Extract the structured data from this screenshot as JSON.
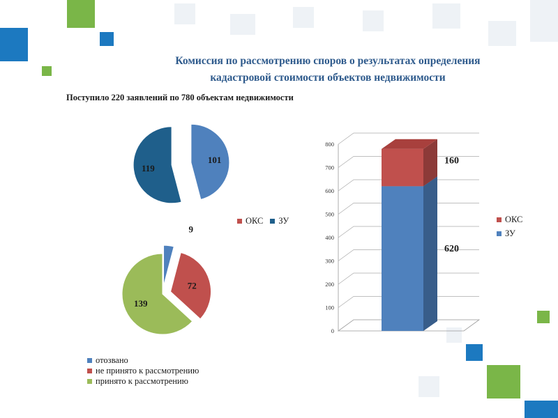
{
  "title_line1": "Комиссия по рассмотрению споров о результатах определения",
  "title_line2": "кадастровой стоимости объектов недвижимости",
  "subtitle": "Поступило 220 заявлений по 780 объектам недвижимости",
  "colors": {
    "blue": "#4f81bd",
    "dark_blue": "#1f5f8b",
    "red": "#c0504d",
    "green": "#9bbb59",
    "deco_blue": "#1c79c0",
    "deco_green": "#7ab648",
    "deco_light": "#e6ebf2"
  },
  "chart_data": [
    {
      "type": "pie",
      "categories": [
        "ОКС",
        "ЗУ"
      ],
      "values": [
        101,
        119
      ],
      "labels": [
        "101",
        "119"
      ],
      "legend": [
        "ОКС",
        "ЗУ"
      ],
      "legend_position": "bottom"
    },
    {
      "type": "pie",
      "categories": [
        "отозвано",
        "не принято к рассмотрению",
        "принято к рассмотрению"
      ],
      "values": [
        9,
        72,
        139
      ],
      "labels": [
        "9",
        "72",
        "139"
      ],
      "legend": [
        "отозвано",
        "не принято к рассмотрению",
        "принято к рассмотрению"
      ],
      "legend_position": "bottom"
    },
    {
      "type": "bar",
      "stacked": true,
      "categories": [
        ""
      ],
      "series": [
        {
          "name": "ЗУ",
          "values": [
            620
          ]
        },
        {
          "name": "ОКС",
          "values": [
            160
          ]
        }
      ],
      "ylim": [
        0,
        800
      ],
      "yticks": [
        "0",
        "100",
        "200",
        "300",
        "400",
        "500",
        "600",
        "700",
        "800"
      ],
      "data_labels": [
        "620",
        "160"
      ],
      "legend": [
        "ОКС",
        "ЗУ"
      ],
      "legend_position": "right",
      "grid": true
    }
  ]
}
